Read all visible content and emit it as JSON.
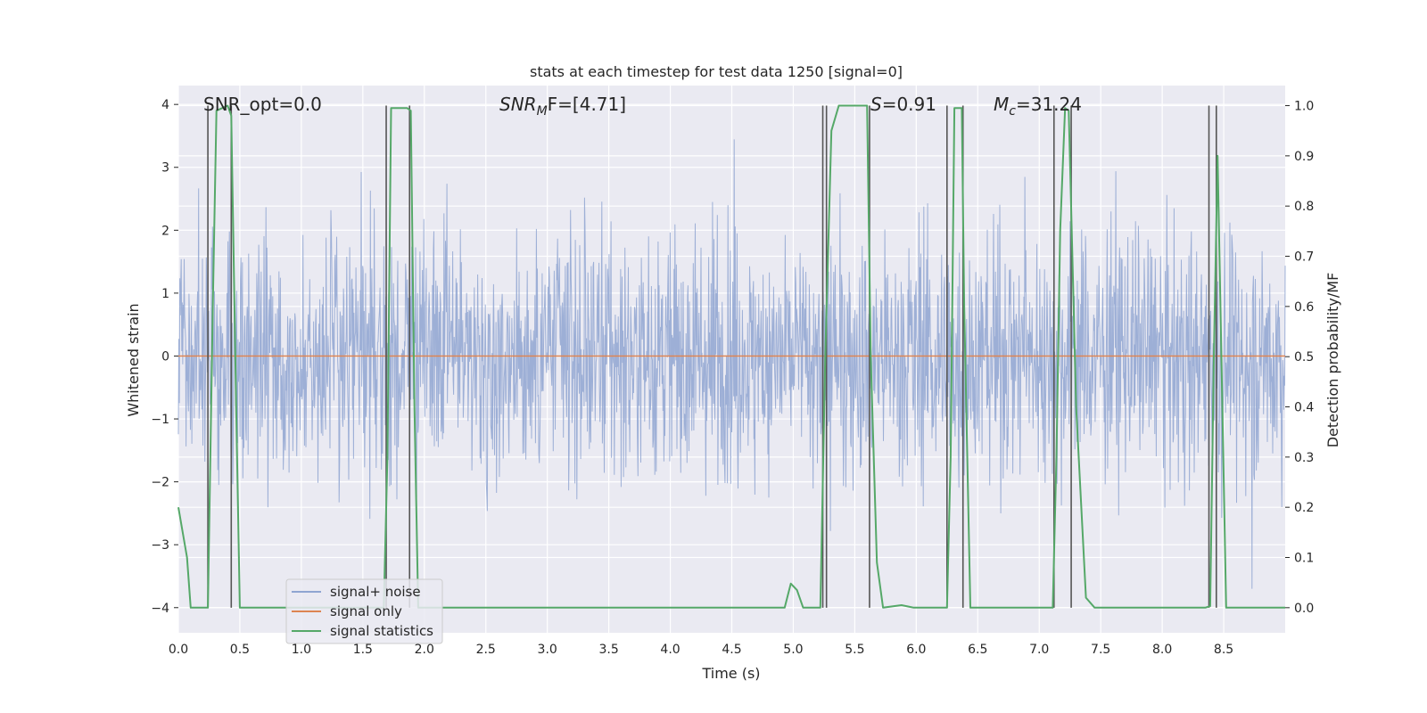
{
  "chart_data": {
    "type": "line",
    "title": "stats at each timestep for test data 1250 [signal=0]",
    "xlabel": "Time (s)",
    "ylabel_left": "Whitened strain",
    "ylabel_right": "Detection probability/MF",
    "xlim": [
      0.0,
      9.0
    ],
    "ylim_left": [
      -4.4,
      4.3
    ],
    "ylim_right": [
      -0.05,
      1.04
    ],
    "x_ticks": [
      "0.0",
      "0.5",
      "1.0",
      "1.5",
      "2.0",
      "2.5",
      "3.0",
      "3.5",
      "4.0",
      "4.5",
      "5.0",
      "5.5",
      "6.0",
      "6.5",
      "7.0",
      "7.5",
      "8.0",
      "8.5"
    ],
    "y_ticks_left": [
      "4",
      "3",
      "2",
      "1",
      "0",
      "−1",
      "−2",
      "−3",
      "−4"
    ],
    "y_ticks_right": [
      "1.0",
      "0.9",
      "0.8",
      "0.7",
      "0.6",
      "0.5",
      "0.4",
      "0.3",
      "0.2",
      "0.1",
      "0.0"
    ],
    "grid": true,
    "legend_position": "lower-left",
    "annotations": {
      "snr_opt": "SNR_opt=0.0",
      "snr_mf_label": "SNR",
      "snr_mf_sub": "M",
      "snr_mf_rest": "F=[4.71]",
      "s_label": "S",
      "s_rest": "=0.91",
      "mc_label": "M",
      "mc_sub": "c",
      "mc_rest": "=31.24"
    },
    "series": [
      {
        "name": "signal+ noise",
        "color": "#8fa5d1",
        "axis": "left",
        "description_values": "whitened noise, roughly within ±2 with spikes to about ±3.5"
      },
      {
        "name": "signal only",
        "color": "#dd8452",
        "axis": "left",
        "x": [
          0.0,
          9.0
        ],
        "y": [
          0.0,
          0.0
        ]
      },
      {
        "name": "signal statistics",
        "color": "#55a868",
        "axis": "right",
        "x": [
          0.0,
          0.07,
          0.1,
          0.24,
          0.28,
          0.31,
          0.4,
          0.43,
          0.47,
          0.5,
          1.67,
          1.7,
          1.73,
          1.86,
          1.89,
          1.92,
          1.95,
          4.93,
          4.98,
          5.03,
          5.08,
          5.22,
          5.26,
          5.31,
          5.37,
          5.6,
          5.63,
          5.68,
          5.73,
          5.88,
          5.98,
          6.25,
          6.28,
          6.31,
          6.37,
          6.39,
          6.44,
          7.11,
          7.14,
          7.17,
          7.21,
          7.24,
          7.3,
          7.38,
          7.45,
          8.35,
          8.39,
          8.42,
          8.45,
          8.52,
          9.0
        ],
        "y": [
          0.2,
          0.1,
          0.0,
          0.0,
          0.6,
          0.99,
          1.0,
          0.98,
          0.4,
          0.0,
          0.0,
          0.3,
          0.995,
          0.995,
          0.99,
          0.4,
          0.0,
          0.0,
          0.048,
          0.035,
          0.0,
          0.0,
          0.5,
          0.95,
          1.0,
          1.0,
          0.5,
          0.09,
          0.0,
          0.005,
          0.0,
          0.0,
          0.3,
          0.995,
          0.995,
          0.6,
          0.0,
          0.0,
          0.3,
          0.75,
          0.995,
          0.99,
          0.4,
          0.02,
          0.0,
          0.0,
          0.003,
          0.5,
          0.9,
          0.0,
          0.0
        ]
      }
    ],
    "vertical_markers": [
      0.24,
      0.43,
      1.69,
      1.88,
      5.24,
      5.27,
      5.62,
      6.25,
      6.38,
      7.12,
      7.26,
      8.38,
      8.44
    ],
    "marker_color": "#555555"
  }
}
